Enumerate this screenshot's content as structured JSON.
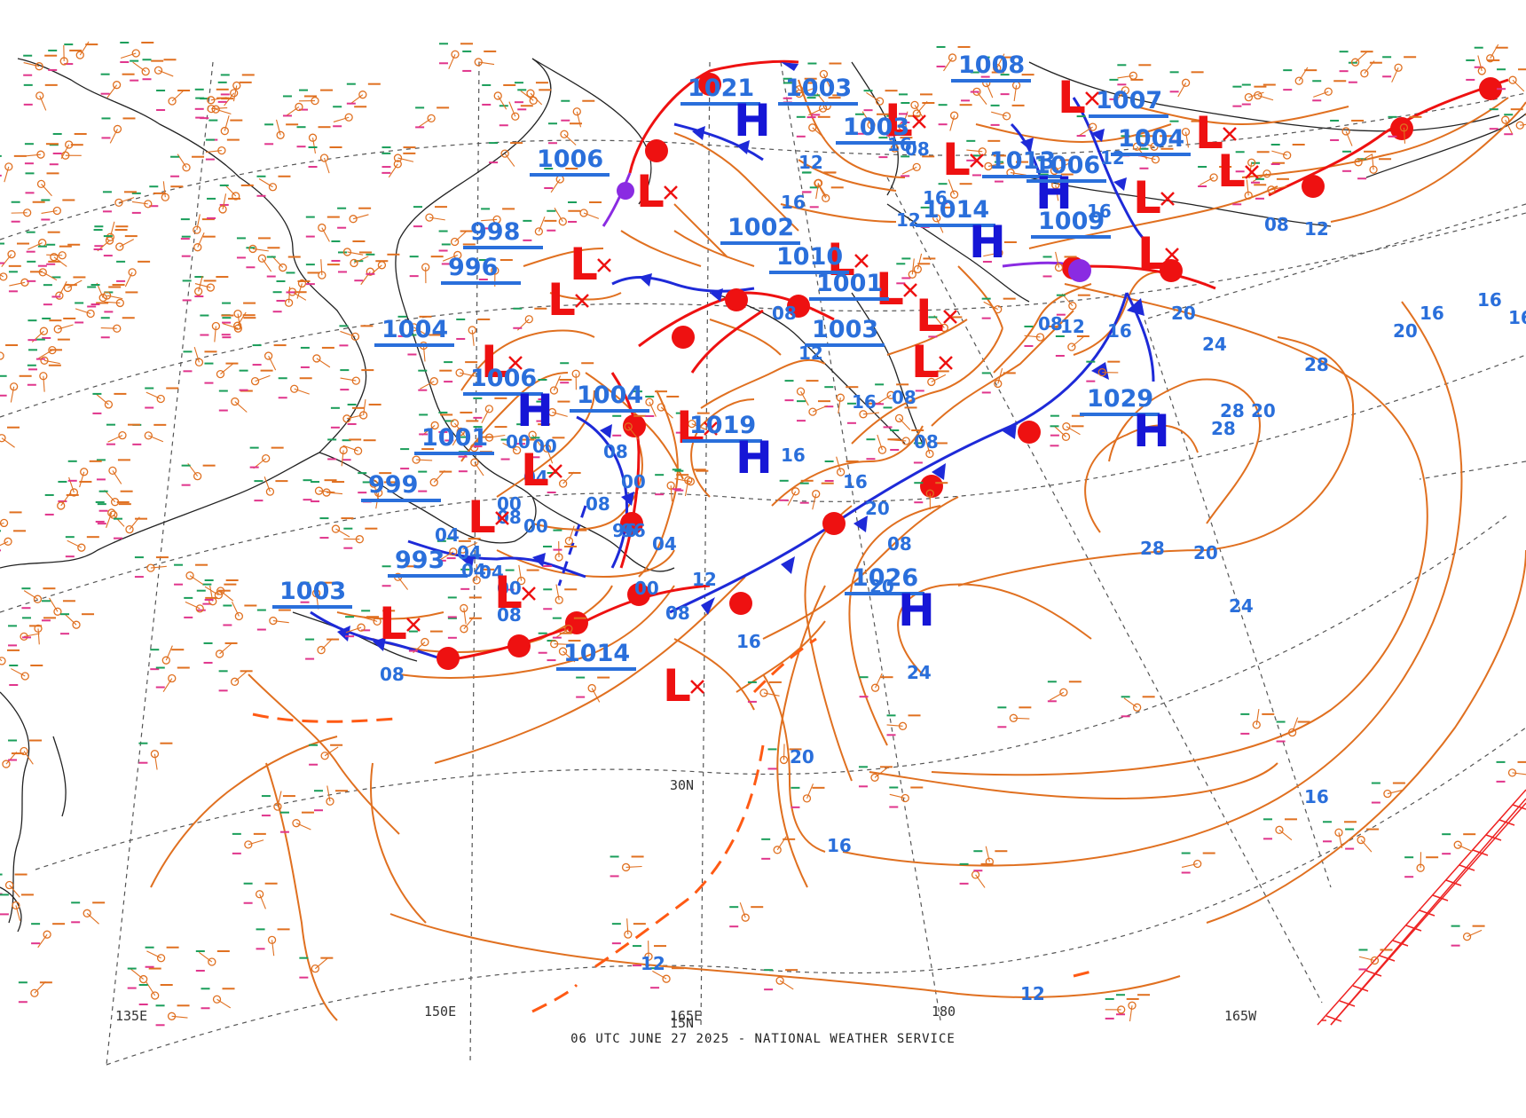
{
  "footer": "06 UTC JUNE 27 2025 - NATIONAL WEATHER SERVICE",
  "colors": {
    "isobar": "#e07020",
    "label": "#2a6fdb",
    "high": "#1616d6",
    "low": "#ee1111",
    "cold_front": "#1e2ad8",
    "warm_front": "#ee1111",
    "occluded_front": "#8a2be2",
    "grid": "#444444",
    "coast": "#222222",
    "station_temp": "#e0358c",
    "station_dew": "#1a9e5a",
    "station_pres": "#e07020"
  },
  "grid_labels": [
    {
      "text": "135E",
      "lon": 135
    },
    {
      "text": "150E",
      "lon": 150
    },
    {
      "text": "165E",
      "lon": 165
    },
    {
      "text": "180",
      "lon": 180
    },
    {
      "text": "165W",
      "lon": -165
    },
    {
      "text": "30N",
      "lat": 30
    },
    {
      "text": "15N",
      "lat": 15
    }
  ],
  "pressure_centers": [
    {
      "type": "H",
      "value": "1021"
    },
    {
      "type": "L",
      "value": "1006"
    },
    {
      "type": "L",
      "value": "998"
    },
    {
      "type": "L",
      "value": "996"
    },
    {
      "type": "L",
      "value": "1004"
    },
    {
      "type": "H",
      "value": "1006"
    },
    {
      "type": "L",
      "value": "1001"
    },
    {
      "type": "L",
      "value": "999"
    },
    {
      "type": "L",
      "value": "993"
    },
    {
      "type": "L",
      "value": "1003"
    },
    {
      "type": "L",
      "value": "1004"
    },
    {
      "type": "H",
      "value": "1019"
    },
    {
      "type": "L",
      "value": "1002"
    },
    {
      "type": "L",
      "value": "1010"
    },
    {
      "type": "L",
      "value": "1003"
    },
    {
      "type": "L",
      "value": "1001"
    },
    {
      "type": "L",
      "value": "1003"
    },
    {
      "type": "L",
      "value": "1003"
    },
    {
      "type": "H",
      "value": "1014"
    },
    {
      "type": "L",
      "value": "1009"
    },
    {
      "type": "L",
      "value": "1007"
    },
    {
      "type": "H",
      "value": "1013"
    },
    {
      "type": "L",
      "value": "1006"
    },
    {
      "type": "L",
      "value": "1008"
    },
    {
      "type": "L",
      "value": "1004"
    },
    {
      "type": "H",
      "value": "1029"
    },
    {
      "type": "H",
      "value": "1026"
    },
    {
      "type": "L",
      "value": "1014"
    }
  ],
  "isobar_labels": [
    "08",
    "12",
    "16",
    "20",
    "24",
    "28",
    "00",
    "04",
    "96"
  ]
}
